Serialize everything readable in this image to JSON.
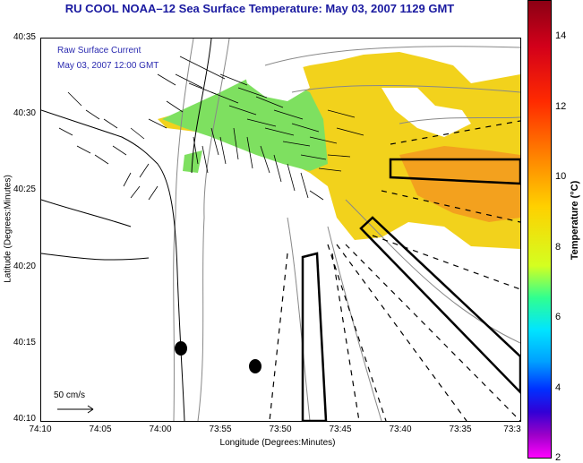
{
  "title": "RU COOL  NOAA–12  Sea Surface Temperature:  May 03, 2007 1129 GMT",
  "overlay": {
    "line1": "Raw Surface Current",
    "line2": "May 03, 2007 12:00 GMT"
  },
  "axes": {
    "ylabel": "Latitude (Degrees:Minutes)",
    "xlabel": "Longitude (Degrees:Minutes)",
    "yticks": [
      "40:35",
      "40:30",
      "40:25",
      "40:20",
      "40:15",
      "40:10"
    ],
    "xticks": [
      "74:10",
      "74:05",
      "74:00",
      "73:55",
      "73:50",
      "73:45",
      "73:40",
      "73:35",
      "73:3"
    ]
  },
  "scale_bar": {
    "label": "50 cm/s"
  },
  "colorbar": {
    "label": "Temperature (°C)",
    "ticks": [
      "14",
      "12",
      "10",
      "8",
      "6",
      "4",
      "2"
    ]
  },
  "colors": {
    "title": "#1a1aa0",
    "sst_warm": "#f2d21c",
    "sst_hot": "#f3a11e",
    "sst_cool": "#7ee060"
  }
}
